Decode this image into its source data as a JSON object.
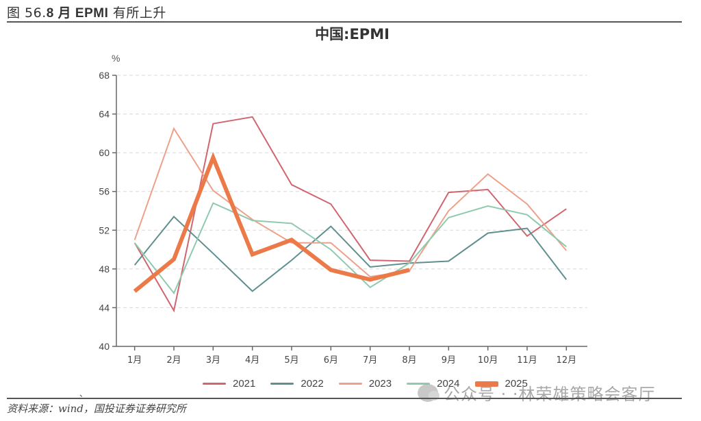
{
  "figure": {
    "number_label": "图 56.",
    "title_bold": "8 月 EPMI",
    "title_rest": " 有所上升"
  },
  "source_text": "资料来源：wind，国投证券证券研究所",
  "stray_mark": "、",
  "watermark": {
    "text": "公众号 · ·林荣雄策略会客厅",
    "icon": "wechat-icon"
  },
  "chart_data": {
    "type": "line",
    "title": "中国:EPMI",
    "xlabel": "",
    "ylabel": "%",
    "ylim": [
      40,
      68
    ],
    "yticks": [
      40,
      44,
      48,
      52,
      56,
      60,
      64,
      68
    ],
    "grid": true,
    "legend_position": "bottom",
    "categories": [
      "1月",
      "2月",
      "3月",
      "4月",
      "5月",
      "6月",
      "7月",
      "8月",
      "9月",
      "10月",
      "11月",
      "12月"
    ],
    "series": [
      {
        "name": "2021",
        "color": "#d0656e",
        "width": 2,
        "values": [
          50.7,
          43.7,
          63.0,
          63.7,
          56.7,
          54.7,
          48.9,
          48.8,
          55.9,
          56.2,
          51.4,
          54.2
        ]
      },
      {
        "name": "2022",
        "color": "#5f8f8e",
        "width": 2,
        "values": [
          48.4,
          53.4,
          49.6,
          45.7,
          48.9,
          52.4,
          48.2,
          48.6,
          48.8,
          51.7,
          52.2,
          46.9
        ]
      },
      {
        "name": "2023",
        "color": "#eea08a",
        "width": 2,
        "values": [
          51.0,
          62.5,
          56.1,
          53.1,
          50.7,
          50.7,
          47.2,
          47.8,
          54.0,
          57.8,
          54.7,
          49.9
        ]
      },
      {
        "name": "2024",
        "color": "#8fcaae",
        "width": 2,
        "values": [
          50.7,
          45.5,
          54.8,
          53.0,
          52.7,
          50.0,
          46.1,
          48.6,
          53.3,
          54.5,
          53.6,
          50.3
        ]
      },
      {
        "name": "2025",
        "color": "#ec7a48",
        "width": 6,
        "values": [
          45.7,
          49.0,
          59.5,
          49.5,
          51.0,
          47.9,
          46.9,
          47.9,
          null,
          null,
          null,
          null
        ]
      }
    ]
  }
}
